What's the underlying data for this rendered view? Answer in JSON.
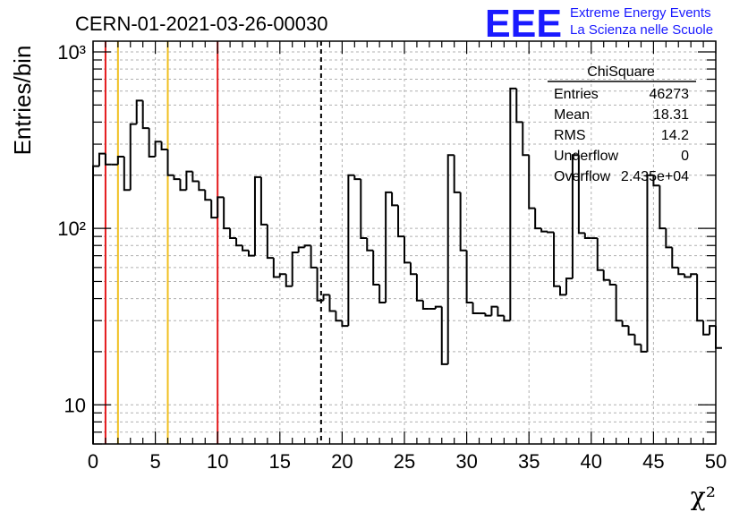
{
  "header": {
    "run_title": "CERN-01-2021-03-26-00030",
    "logo_text": "EEE",
    "logo_line1": "Extreme Energy Events",
    "logo_line2": "La Scienza nelle Scuole"
  },
  "colors": {
    "logo": "#1a1aff",
    "histogram": "#000000",
    "red_line": "#e41a1c",
    "yellow_line": "#f0c020",
    "grid": "#b0b0b0"
  },
  "stats_box": {
    "title": "ChiSquare",
    "rows": [
      {
        "label": "Entries",
        "value": "46273"
      },
      {
        "label": "Mean",
        "value": "18.31"
      },
      {
        "label": "RMS",
        "value": "14.2"
      },
      {
        "label": "Underflow",
        "value": "0"
      },
      {
        "label": "Overflow",
        "value": "2.435e+04"
      }
    ]
  },
  "chart_data": {
    "type": "bar",
    "style": "step-histogram",
    "xlabel": "χ²",
    "ylabel": "Entries/bin",
    "xlim": [
      0,
      50
    ],
    "ylim": [
      6,
      1150
    ],
    "yscale": "log",
    "grid": true,
    "x_ticks": [
      "0",
      "5",
      "10",
      "15",
      "20",
      "25",
      "30",
      "35",
      "40",
      "45",
      "50"
    ],
    "y_ticks": [
      "10",
      "10²",
      "10³"
    ],
    "bin_width": 0.5,
    "values": [
      225,
      265,
      230,
      230,
      255,
      165,
      390,
      530,
      370,
      255,
      310,
      280,
      200,
      190,
      165,
      210,
      185,
      165,
      145,
      115,
      150,
      100,
      88,
      80,
      75,
      70,
      195,
      105,
      68,
      53,
      55,
      47,
      73,
      78,
      80,
      60,
      39,
      42,
      34,
      30,
      28,
      200,
      190,
      88,
      75,
      48,
      38,
      160,
      135,
      90,
      64,
      55,
      39,
      35,
      35,
      36,
      17,
      260,
      160,
      75,
      38,
      33,
      33,
      32,
      36,
      32,
      30,
      620,
      400,
      260,
      130,
      100,
      96,
      95,
      47,
      42,
      52,
      260,
      94,
      88,
      88,
      58,
      51,
      48,
      30,
      28,
      25,
      22,
      20,
      200,
      175,
      100,
      78,
      60,
      55,
      53,
      55,
      30,
      25,
      28,
      21
    ],
    "vertical_lines": [
      {
        "x": 1,
        "color": "red",
        "style": "solid"
      },
      {
        "x": 2,
        "color": "yellow",
        "style": "solid"
      },
      {
        "x": 6,
        "color": "yellow",
        "style": "solid"
      },
      {
        "x": 10,
        "color": "red",
        "style": "solid"
      },
      {
        "x": 18.31,
        "color": "black",
        "style": "dashed"
      }
    ]
  }
}
